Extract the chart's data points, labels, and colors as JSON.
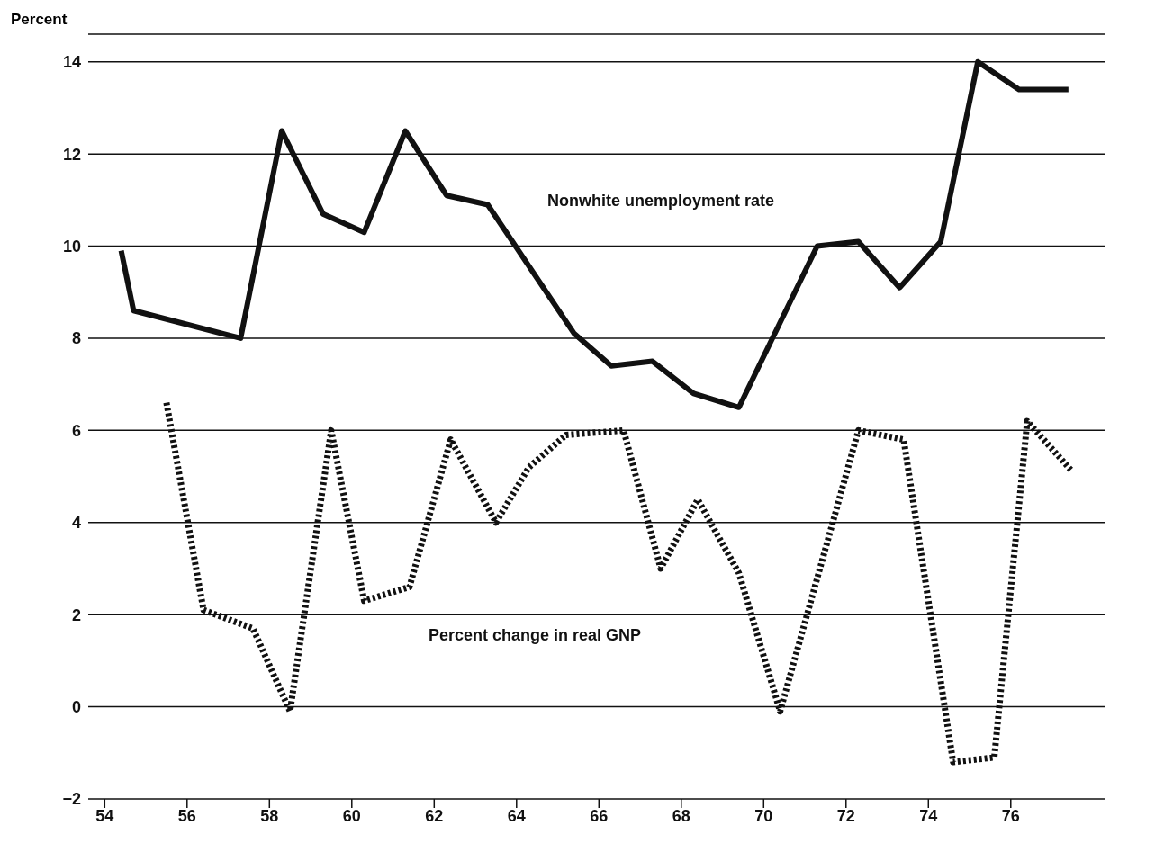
{
  "chart_data": {
    "type": "line",
    "ylabel": "Percent",
    "xlim": [
      53.6,
      78.3
    ],
    "xticks": [
      54,
      56,
      58,
      60,
      62,
      64,
      66,
      68,
      70,
      72,
      74,
      76
    ],
    "ylim": [
      -2,
      14.6
    ],
    "yticks": [
      {
        "value": -2,
        "label": "−2"
      },
      0,
      2,
      4,
      6,
      8,
      10,
      12,
      14
    ],
    "grid": "y",
    "legend": false,
    "marker": "none",
    "series": [
      {
        "name": "Nonwhite unemployment rate",
        "color": "#111111",
        "line_style": "solid",
        "x": [
          54.4,
          54.7,
          57.3,
          58.3,
          59.3,
          60.3,
          61.3,
          62.3,
          63.3,
          65.4,
          66.3,
          67.3,
          68.3,
          69.4,
          71.3,
          72.3,
          73.3,
          74.3,
          75.2,
          76.2,
          77.4
        ],
        "values": [
          9.9,
          8.6,
          8.0,
          12.5,
          10.7,
          10.3,
          12.5,
          11.1,
          10.9,
          8.1,
          7.4,
          7.5,
          6.8,
          6.5,
          10.0,
          10.1,
          9.1,
          10.1,
          14.0,
          13.4,
          13.4
        ]
      },
      {
        "name": "Percent change in real GNP",
        "color": "#111111",
        "line_style": "dotted",
        "x": [
          55.5,
          56.4,
          57.6,
          58.5,
          59.5,
          60.3,
          61.4,
          62.4,
          63.5,
          64.3,
          65.2,
          66.6,
          67.5,
          68.4,
          69.4,
          70.4,
          72.3,
          73.4,
          74.6,
          75.6,
          76.4,
          77.5
        ],
        "values": [
          6.6,
          2.1,
          1.7,
          -0.1,
          6.0,
          2.3,
          2.6,
          5.8,
          4.0,
          5.2,
          5.9,
          6.0,
          3.0,
          4.5,
          2.9,
          -0.1,
          6.0,
          5.8,
          -1.2,
          -1.1,
          6.2,
          5.1
        ]
      }
    ]
  }
}
